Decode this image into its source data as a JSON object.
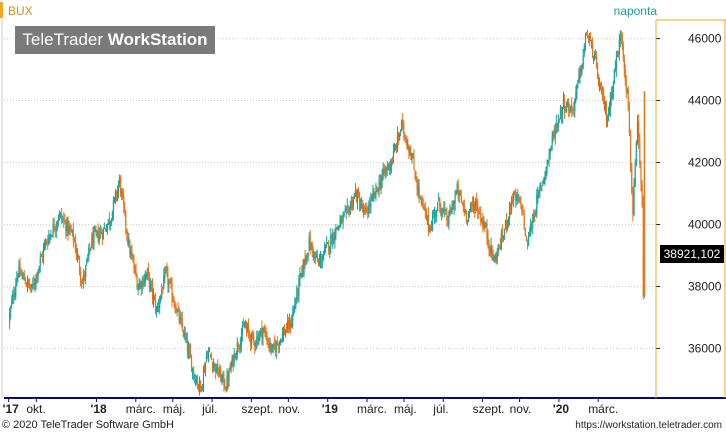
{
  "header": {
    "symbol": "BUX",
    "period": "naponta",
    "brand_light": "TeleTrader ",
    "brand_bold": "WorkStation"
  },
  "footer": {
    "copyright": "© 2020 TeleTrader Software GmbH",
    "url": "https://workstation.teletrader.com"
  },
  "colors": {
    "up": "#1aa39a",
    "down": "#e8731a",
    "accent": "#f5a623",
    "axis": "#0a0a6e"
  },
  "chart_data": {
    "type": "candlestick",
    "title": "BUX",
    "period_label": "naponta",
    "last_value_label": "38921,102",
    "last_value": 38921.102,
    "y_range": [
      34400,
      46600
    ],
    "y_ticks": [
      "46000",
      "44000",
      "42000",
      "40000",
      "38000",
      "36000"
    ],
    "x_ticks": [
      "'17",
      "okt.",
      "'18",
      "márc.",
      "máj.",
      "júl.",
      "szept.",
      "nov.",
      "'19",
      "márc.",
      "máj.",
      "júl.",
      "szept.",
      "nov.",
      "'20",
      "márc."
    ],
    "grid": true,
    "series_path": [
      [
        2017.62,
        36900
      ],
      [
        2017.66,
        38500
      ],
      [
        2017.72,
        37900
      ],
      [
        2017.78,
        39400
      ],
      [
        2017.84,
        40300
      ],
      [
        2017.9,
        39600
      ],
      [
        2017.94,
        38100
      ],
      [
        2017.98,
        39500
      ],
      [
        2018.03,
        39800
      ],
      [
        2018.06,
        40200
      ],
      [
        2018.1,
        41400
      ],
      [
        2018.14,
        39300
      ],
      [
        2018.18,
        38000
      ],
      [
        2018.22,
        38400
      ],
      [
        2018.26,
        37200
      ],
      [
        2018.3,
        38400
      ],
      [
        2018.34,
        37400
      ],
      [
        2018.38,
        36400
      ],
      [
        2018.42,
        35200
      ],
      [
        2018.45,
        34700
      ],
      [
        2018.48,
        35900
      ],
      [
        2018.52,
        35300
      ],
      [
        2018.56,
        34800
      ],
      [
        2018.6,
        35900
      ],
      [
        2018.64,
        36700
      ],
      [
        2018.68,
        36200
      ],
      [
        2018.72,
        36600
      ],
      [
        2018.76,
        35900
      ],
      [
        2018.8,
        36400
      ],
      [
        2018.84,
        36800
      ],
      [
        2018.88,
        38200
      ],
      [
        2018.92,
        39400
      ],
      [
        2018.96,
        38700
      ],
      [
        2019.0,
        39300
      ],
      [
        2019.04,
        39900
      ],
      [
        2019.08,
        40300
      ],
      [
        2019.12,
        41000
      ],
      [
        2019.16,
        40300
      ],
      [
        2019.2,
        40900
      ],
      [
        2019.24,
        41600
      ],
      [
        2019.28,
        42100
      ],
      [
        2019.32,
        43200
      ],
      [
        2019.36,
        42300
      ],
      [
        2019.4,
        40800
      ],
      [
        2019.44,
        39900
      ],
      [
        2019.48,
        40700
      ],
      [
        2019.52,
        40100
      ],
      [
        2019.56,
        41100
      ],
      [
        2019.6,
        40300
      ],
      [
        2019.64,
        40700
      ],
      [
        2019.68,
        39900
      ],
      [
        2019.72,
        38800
      ],
      [
        2019.76,
        39700
      ],
      [
        2019.8,
        40900
      ],
      [
        2019.84,
        40600
      ],
      [
        2019.86,
        39300
      ],
      [
        2019.9,
        40600
      ],
      [
        2019.94,
        41700
      ],
      [
        2019.98,
        43000
      ],
      [
        2020.02,
        43900
      ],
      [
        2020.06,
        43700
      ],
      [
        2020.1,
        45200
      ],
      [
        2020.12,
        46200
      ],
      [
        2020.15,
        45500
      ],
      [
        2020.18,
        44300
      ],
      [
        2020.21,
        43400
      ],
      [
        2020.24,
        44900
      ],
      [
        2020.27,
        46200
      ],
      [
        2020.3,
        43800
      ],
      [
        2020.32,
        40300
      ],
      [
        2020.34,
        43200
      ],
      [
        2020.36,
        40500
      ],
      [
        2020.365,
        37900
      ],
      [
        2020.37,
        38921
      ]
    ]
  }
}
